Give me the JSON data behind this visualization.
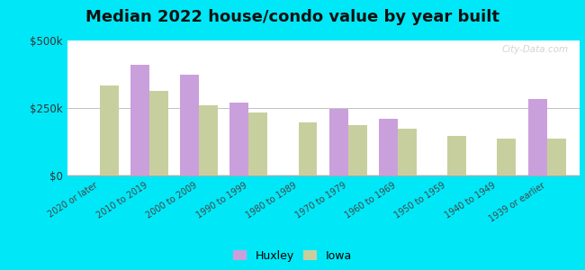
{
  "title": "Median 2022 house/condo value by year built",
  "categories": [
    "2020 or later",
    "2010 to 2019",
    "2000 to 2009",
    "1990 to 1999",
    "1980 to 1989",
    "1970 to 1979",
    "1960 to 1969",
    "1950 to 1959",
    "1940 to 1949",
    "1939 or earlier"
  ],
  "huxley_values": [
    null,
    410000,
    375000,
    270000,
    null,
    248000,
    210000,
    null,
    null,
    285000
  ],
  "iowa_values": [
    335000,
    315000,
    260000,
    235000,
    198000,
    188000,
    175000,
    148000,
    138000,
    138000
  ],
  "huxley_color": "#c9a0dc",
  "iowa_color": "#c8cf9e",
  "background_outer": "#00e8f8",
  "bg_top": "#eaf7e2",
  "bg_bottom": "#d0ece4",
  "ylim": [
    0,
    500000
  ],
  "ytick_labels": [
    "$0",
    "$250k",
    "$500k"
  ],
  "ytick_values": [
    0,
    250000,
    500000
  ],
  "title_fontsize": 13,
  "legend_labels": [
    "Huxley",
    "Iowa"
  ],
  "watermark": "City-Data.com"
}
